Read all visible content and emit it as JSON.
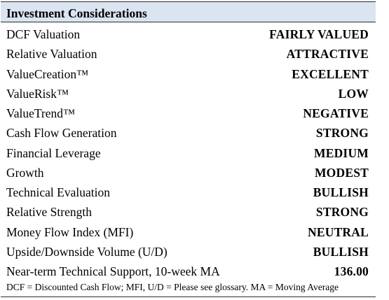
{
  "header": {
    "title": "Investment Considerations"
  },
  "rows": [
    {
      "label": "DCF Valuation",
      "value": "FAIRLY VALUED"
    },
    {
      "label": "Relative Valuation",
      "value": "ATTRACTIVE"
    },
    {
      "label": "ValueCreation™",
      "value": "EXCELLENT"
    },
    {
      "label": "ValueRisk™",
      "value": "LOW"
    },
    {
      "label": "ValueTrend™",
      "value": "NEGATIVE"
    },
    {
      "label": "Cash Flow Generation",
      "value": "STRONG"
    },
    {
      "label": "Financial Leverage",
      "value": "MEDIUM"
    },
    {
      "label": "Growth",
      "value": "MODEST"
    },
    {
      "label": "Technical Evaluation",
      "value": "BULLISH"
    },
    {
      "label": "Relative Strength",
      "value": "STRONG"
    },
    {
      "label": "Money Flow Index (MFI)",
      "value": "NEUTRAL"
    },
    {
      "label": "Upside/Downside Volume (U/D)",
      "value": "BULLISH"
    },
    {
      "label": "Near-term Technical Support, 10-week MA",
      "value": "136.00"
    }
  ],
  "footnote": "DCF = Discounted Cash Flow; MFI, U/D = Please see glossary. MA = Moving Average",
  "colors": {
    "header_background": "#dbe4f1",
    "rule": "#2b2b2b"
  }
}
